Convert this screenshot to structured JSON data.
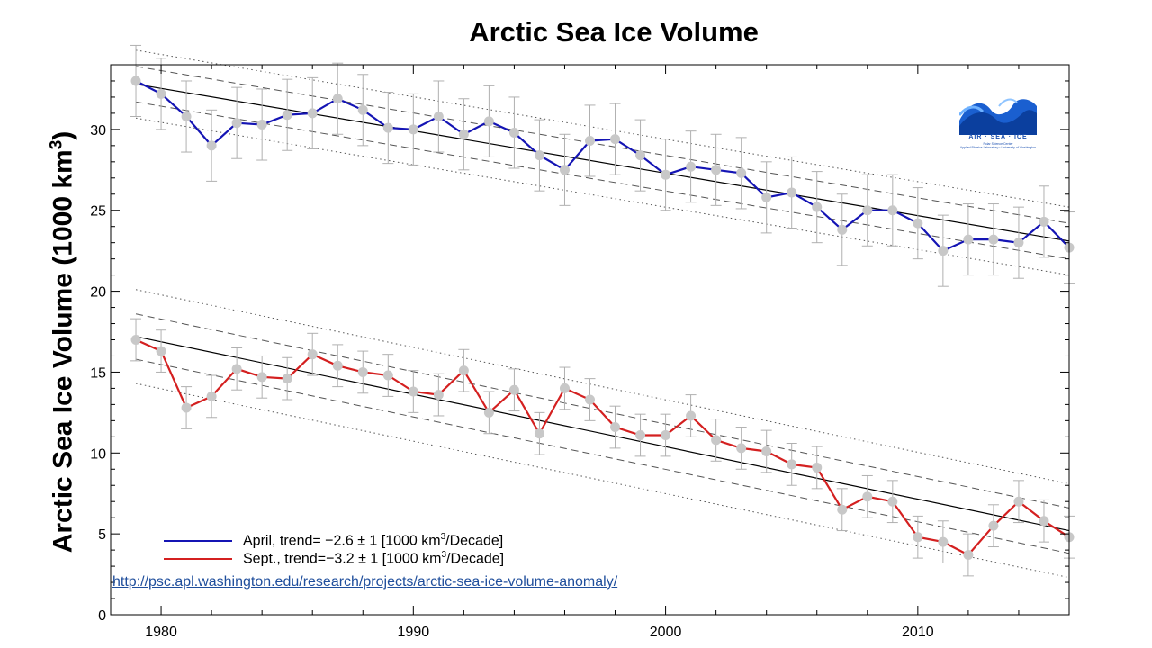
{
  "chart_data": {
    "type": "line",
    "title": "Arctic Sea Ice Volume",
    "ylabel": "Arctic Sea Ice Volume (1000 km",
    "ylabel_superscript": "3",
    "ylabel_suffix": ")",
    "xlabel": "",
    "xlim": [
      1978,
      2016
    ],
    "ylim": [
      0,
      34
    ],
    "x_ticks": [
      1980,
      1990,
      2000,
      2010
    ],
    "y_ticks": [
      0,
      5,
      10,
      15,
      20,
      25,
      30
    ],
    "x": [
      1979,
      1980,
      1981,
      1982,
      1983,
      1984,
      1985,
      1986,
      1987,
      1988,
      1989,
      1990,
      1991,
      1992,
      1993,
      1994,
      1995,
      1996,
      1997,
      1998,
      1999,
      2000,
      2001,
      2002,
      2003,
      2004,
      2005,
      2006,
      2007,
      2008,
      2009,
      2010,
      2011,
      2012,
      2013,
      2014,
      2015,
      2016
    ],
    "series": [
      {
        "name": "April",
        "legend": "April, trend= −2.6 ± 1 [1000 km",
        "legend_sup": "3",
        "legend_suffix": "/Decade]",
        "color": "#1414b4",
        "values": [
          33.0,
          32.2,
          30.8,
          29.0,
          30.4,
          30.3,
          30.9,
          31.0,
          31.9,
          31.2,
          30.1,
          30.0,
          30.8,
          29.7,
          30.5,
          29.8,
          28.4,
          27.5,
          29.3,
          29.4,
          28.4,
          27.2,
          27.7,
          27.5,
          27.3,
          25.8,
          26.1,
          25.2,
          23.8,
          25.0,
          25.0,
          24.2,
          22.5,
          23.2,
          23.2,
          23.0,
          24.3,
          22.7
        ],
        "error": 2.2,
        "trend": {
          "start": 32.8,
          "end": 23.1
        },
        "band_inner": 1.1,
        "band_outer": 2.1
      },
      {
        "name": "Sept.",
        "legend": "Sept., trend=−3.2 ± 1 [1000 km",
        "legend_sup": "3",
        "legend_suffix": "/Decade]",
        "color": "#d42020",
        "values": [
          17.0,
          16.3,
          12.8,
          13.5,
          15.2,
          14.7,
          14.6,
          16.1,
          15.4,
          15.0,
          14.8,
          13.8,
          13.6,
          15.1,
          12.5,
          13.9,
          11.2,
          14.0,
          13.3,
          11.6,
          11.1,
          11.1,
          12.3,
          10.8,
          10.3,
          10.1,
          9.3,
          9.1,
          6.5,
          7.3,
          7.0,
          4.8,
          4.5,
          3.7,
          5.5,
          7.0,
          5.8,
          4.8
        ],
        "error": 1.3,
        "trend": {
          "start": 17.2,
          "end": 5.2
        },
        "band_inner": 1.4,
        "band_outer": 2.9
      }
    ],
    "marker_color": "#c8c8c8",
    "legend_position": "bottom-left"
  },
  "source_link": "http://psc.apl.washington.edu/research/projects/arctic-sea-ice-volume-anomaly/",
  "logo": {
    "text": "AIR · SEA · ICE",
    "subtitle": "Polar Science Center",
    "subtitle2": "Applied Physics Laboratory • University of Washington"
  }
}
